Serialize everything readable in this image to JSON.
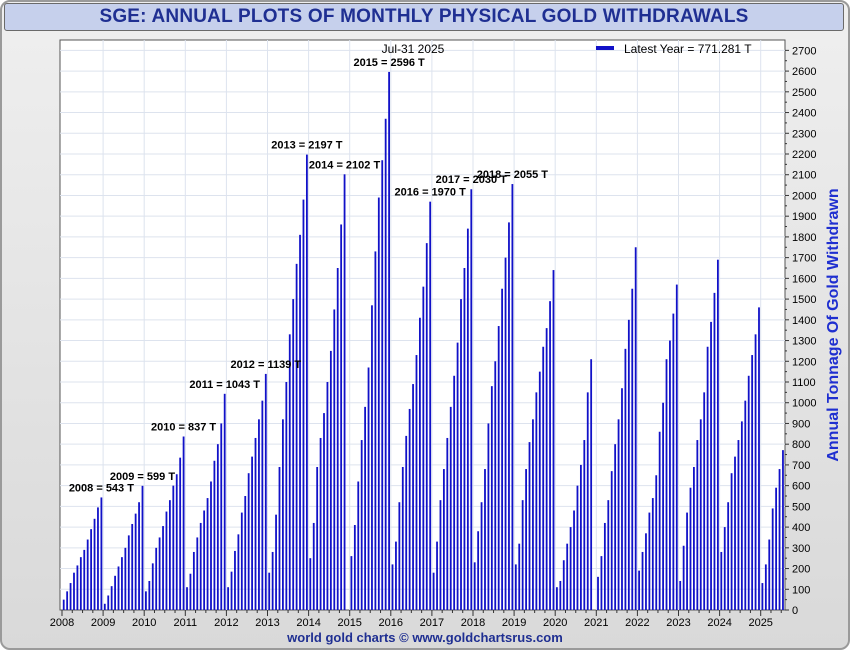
{
  "title": "SGE: ANNUAL PLOTS OF MONTHLY PHYSICAL GOLD WITHDRAWALS",
  "footer": "world gold charts © www.goldchartsrus.com",
  "colors": {
    "bars": "#1111c8",
    "title_text": "#1f2f92",
    "title_bg": "#c6d0ec",
    "grid": "#dde3ee"
  },
  "chart_data": {
    "type": "bar",
    "date_label": "Jul-31  2025",
    "legend": "Latest Year = 771.281 T",
    "legend_position": "top-right",
    "ylabel": "Annual Tonnage Of Gold Withdrawn",
    "ylim": [
      0,
      2750
    ],
    "yticks": [
      0,
      100,
      200,
      300,
      400,
      500,
      600,
      700,
      800,
      900,
      1000,
      1100,
      1200,
      1300,
      1400,
      1500,
      1600,
      1700,
      1800,
      1900,
      2000,
      2100,
      2200,
      2300,
      2400,
      2500,
      2600,
      2700
    ],
    "xticks": [
      "2008",
      "2009",
      "2010",
      "2011",
      "2012",
      "2013",
      "2014",
      "2015",
      "2016",
      "2017",
      "2018",
      "2019",
      "2020",
      "2021",
      "2022",
      "2023",
      "2024",
      "2025"
    ],
    "grid": true,
    "series": [
      {
        "year": "2008",
        "annotation": "2008 = 543 T",
        "values": [
          50,
          90,
          130,
          180,
          215,
          255,
          290,
          340,
          390,
          440,
          495,
          543
        ]
      },
      {
        "year": "2009",
        "annotation": "2009 = 599 T",
        "values": [
          30,
          70,
          115,
          165,
          210,
          255,
          300,
          360,
          415,
          465,
          520,
          599
        ]
      },
      {
        "year": "2010",
        "annotation": "2010 = 837 T",
        "values": [
          90,
          140,
          225,
          300,
          350,
          405,
          475,
          530,
          600,
          655,
          735,
          837
        ]
      },
      {
        "year": "2011",
        "annotation": "2011 = 1043 T",
        "values": [
          110,
          175,
          280,
          350,
          420,
          480,
          540,
          620,
          720,
          800,
          900,
          1043
        ]
      },
      {
        "year": "2012",
        "annotation": "2012 = 1139 T",
        "values": [
          110,
          185,
          285,
          365,
          470,
          550,
          660,
          740,
          830,
          920,
          1010,
          1139
        ]
      },
      {
        "year": "2013",
        "annotation": "2013 = 2197 T",
        "values": [
          180,
          280,
          460,
          690,
          920,
          1100,
          1330,
          1500,
          1670,
          1810,
          1980,
          2197
        ]
      },
      {
        "year": "2014",
        "annotation": "2014 = 2102 T",
        "values": [
          250,
          420,
          690,
          830,
          950,
          1100,
          1250,
          1450,
          1650,
          1860,
          2102
        ]
      },
      {
        "year": "2015",
        "annotation": "2015 = 2596 T",
        "values": [
          260,
          410,
          620,
          820,
          980,
          1170,
          1470,
          1730,
          1990,
          2170,
          2370,
          2596
        ]
      },
      {
        "year": "2016",
        "annotation": "2016 = 1970 T",
        "values": [
          220,
          330,
          520,
          690,
          840,
          970,
          1090,
          1230,
          1410,
          1560,
          1770,
          1970
        ]
      },
      {
        "year": "2017",
        "annotation": "2017 = 2030 T",
        "values": [
          180,
          330,
          530,
          680,
          830,
          980,
          1130,
          1290,
          1500,
          1650,
          1840,
          2030
        ]
      },
      {
        "year": "2018",
        "annotation": "2018 = 2055 T",
        "values": [
          230,
          380,
          520,
          680,
          900,
          1080,
          1200,
          1370,
          1550,
          1700,
          1870,
          2055
        ]
      },
      {
        "year": "2019",
        "annotation": "",
        "values": [
          220,
          320,
          530,
          680,
          810,
          920,
          1050,
          1150,
          1270,
          1360,
          1490,
          1640
        ]
      },
      {
        "year": "2020",
        "annotation": "",
        "values": [
          110,
          140,
          240,
          320,
          400,
          480,
          600,
          700,
          820,
          1050,
          1210
        ]
      },
      {
        "year": "2021",
        "annotation": "",
        "values": [
          160,
          260,
          420,
          530,
          670,
          800,
          920,
          1070,
          1260,
          1400,
          1550,
          1750
        ]
      },
      {
        "year": "2022",
        "annotation": "",
        "values": [
          190,
          280,
          370,
          470,
          540,
          650,
          860,
          1000,
          1210,
          1300,
          1430,
          1570
        ]
      },
      {
        "year": "2023",
        "annotation": "",
        "values": [
          140,
          310,
          470,
          590,
          690,
          820,
          920,
          1050,
          1270,
          1390,
          1530,
          1690
        ]
      },
      {
        "year": "2024",
        "annotation": "",
        "values": [
          280,
          400,
          520,
          660,
          740,
          820,
          910,
          1010,
          1130,
          1230,
          1330,
          1460
        ]
      },
      {
        "year": "2025",
        "annotation": "",
        "values": [
          130,
          220,
          340,
          490,
          590,
          680,
          771.281
        ]
      }
    ]
  }
}
